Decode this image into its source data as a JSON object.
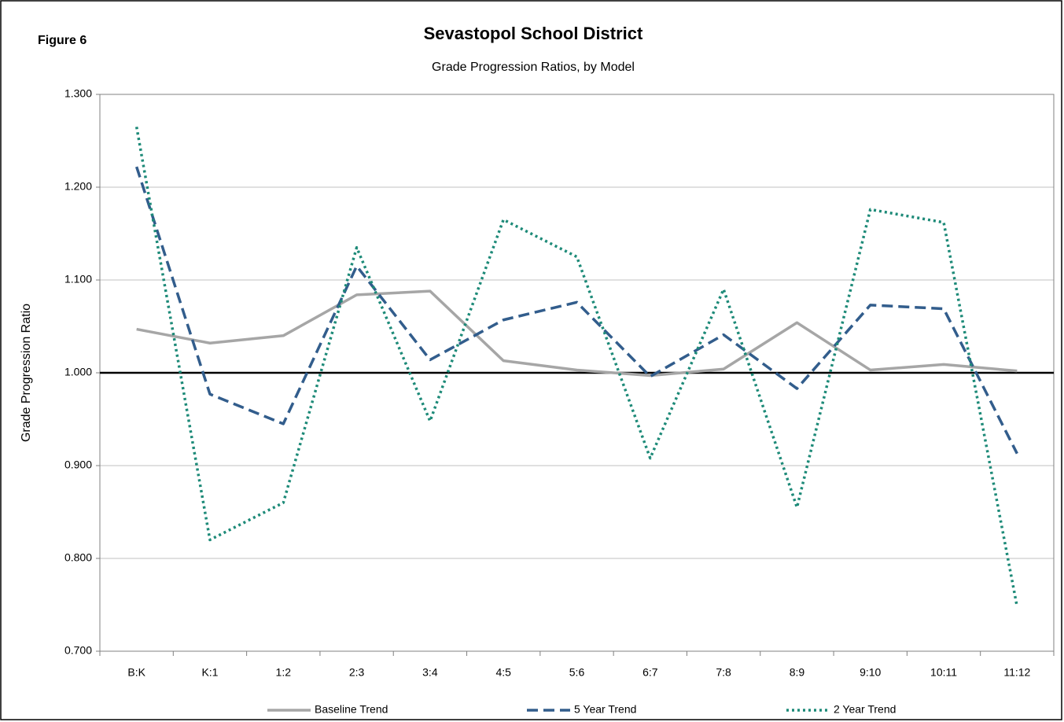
{
  "chart_data": {
    "type": "line",
    "title": "Sevastopol School District",
    "subtitle": "Grade Progression Ratios, by Model",
    "annotation": "Figure 6",
    "ylabel": "Grade Progression Ratio",
    "categories": [
      "B:K",
      "K:1",
      "1:2",
      "2:3",
      "3:4",
      "4:5",
      "5:6",
      "6:7",
      "7:8",
      "8:9",
      "9:10",
      "10:11",
      "11:12"
    ],
    "series": [
      {
        "name": "Baseline Trend",
        "color": "#a6a6a6",
        "dash": "solid",
        "values": [
          1.047,
          1.032,
          1.04,
          1.084,
          1.088,
          1.013,
          1.003,
          0.997,
          1.004,
          1.054,
          1.003,
          1.009,
          1.002
        ]
      },
      {
        "name": "5 Year Trend",
        "color": "#325d8c",
        "dash": "dashed",
        "values": [
          1.222,
          0.977,
          0.945,
          1.115,
          1.014,
          1.057,
          1.076,
          0.996,
          1.041,
          0.983,
          1.073,
          1.069,
          0.913
        ]
      },
      {
        "name": "2 Year Trend",
        "color": "#1d8a78",
        "dash": "dotted",
        "values": [
          1.265,
          0.82,
          0.86,
          1.135,
          0.948,
          1.165,
          1.125,
          0.908,
          1.09,
          0.855,
          1.176,
          1.162,
          0.748
        ]
      }
    ],
    "ylim": [
      0.7,
      1.3
    ],
    "yticks": [
      {
        "value": 0.7,
        "label": "0.700"
      },
      {
        "value": 0.8,
        "label": "0.800"
      },
      {
        "value": 0.9,
        "label": "0.900"
      },
      {
        "value": 1,
        "label": "1.000"
      },
      {
        "value": 1.1,
        "label": "1.100"
      },
      {
        "value": 1.2,
        "label": "1.200"
      },
      {
        "value": 1.3,
        "label": "1.300"
      }
    ],
    "grid": true,
    "reference_line": 1,
    "legend": "bottom"
  }
}
